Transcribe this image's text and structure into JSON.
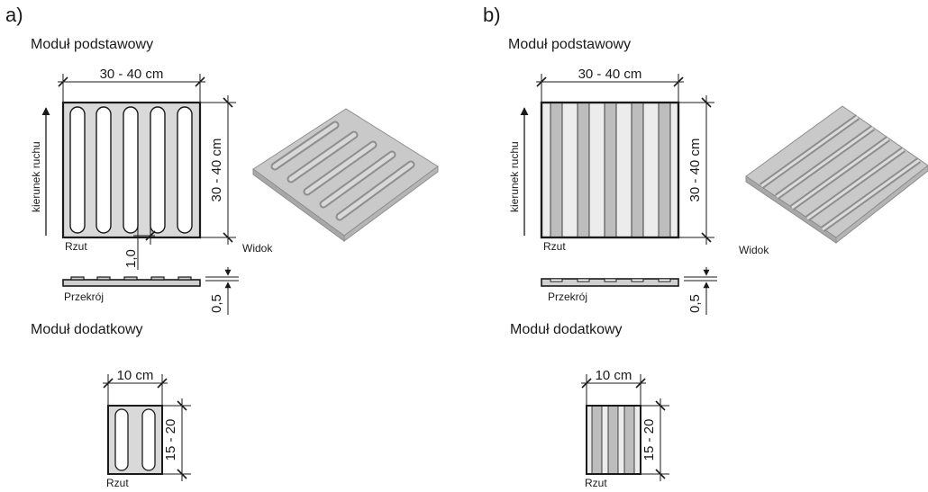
{
  "colors": {
    "ink": "#1a1a1a",
    "tile": "#d9d9d9",
    "stripe_dark": "#bdbdbd",
    "stripe_light": "#ececec",
    "iso_top": "#c9c9c9",
    "iso_edge": "#a8a8a8"
  },
  "panels": [
    {
      "id": "a",
      "letter": "a)",
      "pattern": "ovals",
      "basic_title": "Moduł podstawowy",
      "width_dim": "30 - 40 cm",
      "height_dim": "30 - 40 cm",
      "direction_label": "kierunek ruchu",
      "plan_label": "Rzut",
      "view_label": "Widok",
      "spacing_dim": "1,0",
      "section_label": "Przekrój",
      "section_dim": "0,5",
      "additional_title": "Moduł dodatkowy",
      "add_width_dim": "10 cm",
      "add_height_dim": "15 - 20",
      "add_plan_label": "Rzut"
    },
    {
      "id": "b",
      "letter": "b)",
      "pattern": "stripes",
      "basic_title": "Moduł podstawowy",
      "width_dim": "30 - 40 cm",
      "height_dim": "30 - 40 cm",
      "direction_label": "kierunek ruchu",
      "plan_label": "Rzut",
      "view_label": "Widok",
      "section_label": "Przekrój",
      "section_dim": "0,5",
      "additional_title": "Moduł dodatkowy",
      "add_width_dim": "10 cm",
      "add_height_dim": "15 - 20",
      "add_plan_label": "Rzut"
    }
  ]
}
